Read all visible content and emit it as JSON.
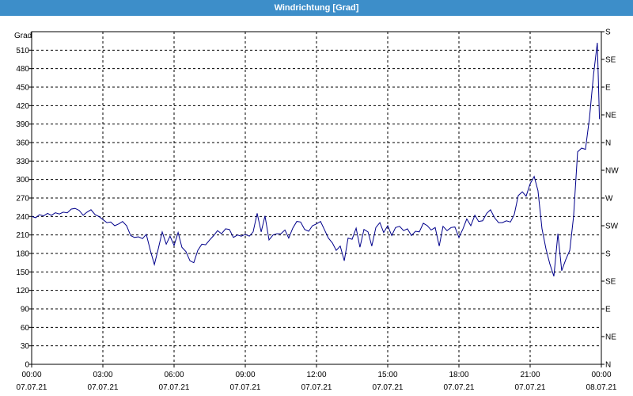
{
  "window": {
    "title": "Windrichtung [Grad]"
  },
  "colors": {
    "titlebar": "#3d8ec9",
    "line": "#00008b",
    "grid": "#000000"
  },
  "chart_data": {
    "type": "line",
    "title": "Windrichtung [Grad]",
    "ylabel": "Grad",
    "xlabel": "",
    "ylim": [
      0,
      540
    ],
    "xlim": [
      0,
      24
    ],
    "grid": true,
    "y_ticks": [
      0,
      30,
      60,
      90,
      120,
      150,
      180,
      210,
      240,
      270,
      300,
      330,
      360,
      390,
      420,
      450,
      480,
      510
    ],
    "right_axis_labels": [
      "N",
      "NE",
      "E",
      "SE",
      "S",
      "SW",
      "W",
      "NW",
      "N",
      "NE",
      "E",
      "SE",
      "S"
    ],
    "x_ticks": [
      {
        "time": "00:00",
        "date": "07.07.21"
      },
      {
        "time": "03:00",
        "date": "07.07.21"
      },
      {
        "time": "06:00",
        "date": "07.07.21"
      },
      {
        "time": "09:00",
        "date": "07.07.21"
      },
      {
        "time": "12:00",
        "date": "07.07.21"
      },
      {
        "time": "15:00",
        "date": "07.07.21"
      },
      {
        "time": "18:00",
        "date": "07.07.21"
      },
      {
        "time": "21:00",
        "date": "07.07.21"
      },
      {
        "time": "00:00",
        "date": "08.07.21"
      }
    ],
    "series": [
      {
        "x": [
          0,
          0.17,
          0.33,
          0.5,
          0.67,
          0.83,
          1.0,
          1.17,
          1.33,
          1.5,
          1.67,
          1.83,
          2.0,
          2.17,
          2.33,
          2.5,
          2.67,
          2.83,
          3.0,
          3.17,
          3.33,
          3.5,
          3.67,
          3.83,
          4.0,
          4.17,
          4.33,
          4.5,
          4.67,
          4.83,
          5.0,
          5.17,
          5.33,
          5.5,
          5.67,
          5.83,
          6.0,
          6.17,
          6.33,
          6.5,
          6.67,
          6.83,
          7.0,
          7.17,
          7.33,
          7.5,
          7.67,
          7.83,
          8.0,
          8.17,
          8.33,
          8.5,
          8.67,
          8.83,
          9.0,
          9.17,
          9.33,
          9.5,
          9.67,
          9.83,
          10.0,
          10.17,
          10.33,
          10.5,
          10.67,
          10.83,
          11.0,
          11.17,
          11.33,
          11.5,
          11.67,
          11.83,
          12.0,
          12.17,
          12.33,
          12.5,
          12.67,
          12.83,
          13.0,
          13.17,
          13.33,
          13.5,
          13.67,
          13.83,
          14.0,
          14.17,
          14.33,
          14.5,
          14.67,
          14.83,
          15.0,
          15.17,
          15.33,
          15.5,
          15.67,
          15.83,
          16.0,
          16.17,
          16.33,
          16.5,
          16.67,
          16.83,
          17.0,
          17.17,
          17.33,
          17.5,
          17.67,
          17.83,
          18.0,
          18.17,
          18.33,
          18.5,
          18.67,
          18.83,
          19.0,
          19.17,
          19.33,
          19.5,
          19.67,
          19.83,
          20.0,
          20.17,
          20.33,
          20.5,
          20.67,
          20.83,
          21.0,
          21.17,
          21.33,
          21.5,
          21.67,
          21.83,
          22.0,
          22.17,
          22.33,
          22.5,
          22.67,
          22.83,
          23.0,
          23.17,
          23.33,
          23.5,
          23.67,
          23.83,
          23.92
        ],
        "y": [
          240,
          238,
          243,
          241,
          245,
          242,
          246,
          244,
          247,
          246,
          252,
          253,
          250,
          242,
          247,
          251,
          243,
          240,
          235,
          230,
          231,
          225,
          228,
          232,
          225,
          209,
          206,
          207,
          204,
          211,
          185,
          162,
          187,
          215,
          195,
          208,
          193,
          214,
          190,
          183,
          168,
          165,
          185,
          195,
          194,
          202,
          209,
          217,
          212,
          220,
          219,
          206,
          210,
          208,
          211,
          208,
          215,
          245,
          215,
          241,
          202,
          210,
          212,
          212,
          218,
          205,
          221,
          232,
          231,
          219,
          216,
          225,
          228,
          232,
          219,
          205,
          197,
          185,
          192,
          168,
          205,
          203,
          221,
          190,
          219,
          215,
          192,
          222,
          230,
          214,
          225,
          209,
          222,
          224,
          217,
          220,
          209,
          216,
          215,
          229,
          225,
          218,
          222,
          192,
          224,
          217,
          222,
          223,
          206,
          220,
          236,
          225,
          242,
          232,
          233,
          245,
          251,
          238,
          230,
          230,
          233,
          231,
          243,
          274,
          280,
          273,
          293,
          305,
          282,
          220,
          187,
          163,
          143,
          212,
          152,
          170,
          185,
          240,
          345,
          351,
          349,
          400,
          470,
          522,
          398
        ]
      }
    ]
  }
}
